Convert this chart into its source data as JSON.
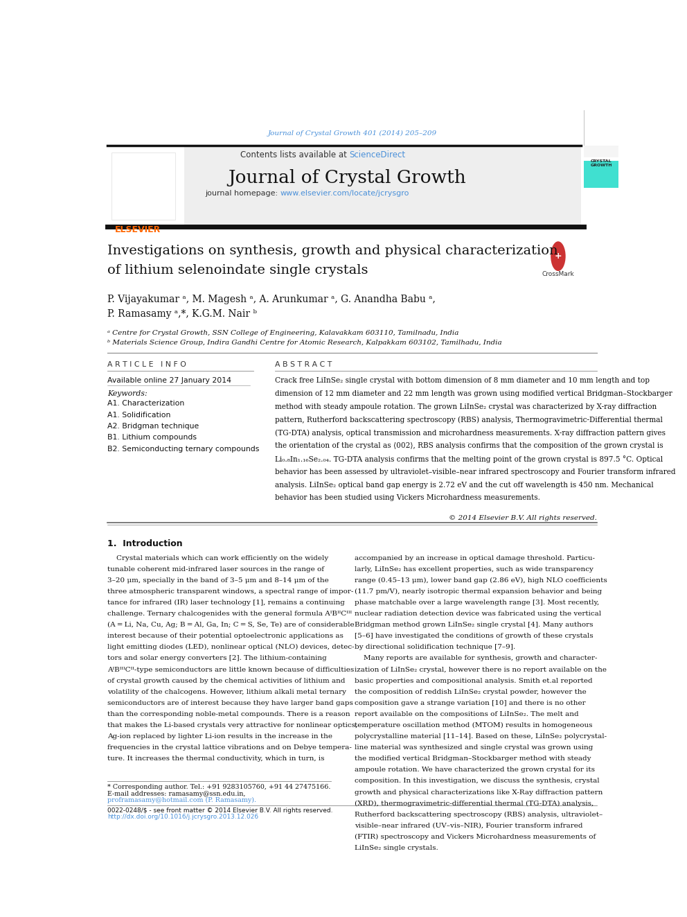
{
  "page_width": 9.92,
  "page_height": 13.23,
  "bg_color": "#ffffff",
  "journal_ref": "Journal of Crystal Growth 401 (2014) 205–209",
  "journal_ref_color": "#4a90d9",
  "journal_name": "Journal of Crystal Growth",
  "contents_text": "Contents lists available at ",
  "sciencedirect_text": "ScienceDirect",
  "sciencedirect_color": "#4a90d9",
  "journal_homepage_text": "journal homepage: ",
  "journal_url": "www.elsevier.com/locate/jcrysgro",
  "journal_url_color": "#4a90d9",
  "sidebar_teal": "#40E0D0",
  "article_title_line1": "Investigations on synthesis, growth and physical characterization",
  "article_title_line2": "of lithium selenoindate single crystals",
  "authors_line1": "P. Vijayakumar ᵃ, M. Magesh ᵃ, A. Arunkumar ᵃ, G. Anandha Babu ᵃ,",
  "authors_line2": "P. Ramasamy ᵃ,*, K.G.M. Nair ᵇ",
  "affil_a": "ᵃ Centre for Crystal Growth, SSN College of Engineering, Kalavakkam 603110, Tamilnadu, India",
  "affil_b": "ᵇ Materials Science Group, Indira Gandhi Centre for Atomic Research, Kalpakkam 603102, Tamilhadu, India",
  "article_info_title": "A R T I C L E   I N F O",
  "abstract_title": "A B S T R A C T",
  "available_online": "Available online 27 January 2014",
  "keywords_label": "Keywords:",
  "keywords": [
    "A1. Characterization",
    "A1. Solidification",
    "A2. Bridgman technique",
    "B1. Lithium compounds",
    "B2. Semiconducting ternary compounds"
  ],
  "abstract_text": "Crack free LiInSe₂ single crystal with bottom dimension of 8 mm diameter and 10 mm length and top\ndimension of 12 mm diameter and 22 mm length was grown using modified vertical Bridgman–Stockbarger\nmethod with steady ampoule rotation. The grown LiInSe₂ crystal was characterized by X-ray diffraction\npattern, Rutherford backscattering spectroscopy (RBS) analysis, Thermogravimetric-Differential thermal\n(TG-DTA) analysis, optical transmission and microhardness measurements. X-ray diffraction pattern gives\nthe orientation of the crystal as ⟨002⟩, RBS analysis confirms that the composition of the grown crystal is\nLi₀.₈In₁.₁₆Se₂.₀₄. TG-DTA analysis confirms that the melting point of the grown crystal is 897.5 °C. Optical\nbehavior has been assessed by ultraviolet–visible–near infrared spectroscopy and Fourier transform infrared\nanalysis. LiInSe₂ optical band gap energy is 2.72 eV and the cut off wavelength is 450 nm. Mechanical\nbehavior has been studied using Vickers Microhardness measurements.",
  "copyright_text": "© 2014 Elsevier B.V. All rights reserved.",
  "section1_title": "1.  Introduction",
  "intro_col1": "    Crystal materials which can work efficiently on the widely\ntunable coherent mid-infrared laser sources in the range of\n3–20 μm, specially in the band of 3–5 μm and 8–14 μm of the\nthree atmospheric transparent windows, a spectral range of impor-\ntance for infrared (IR) laser technology [1], remains a continuing\nchallenge. Ternary chalcogenides with the general formula AᴵBᴵᴵCᴵᴵᴵ\n(A = Li, Na, Cu, Ag; B = Al, Ga, In; C = S, Se, Te) are of considerable\ninterest because of their potential optoelectronic applications as\nlight emitting diodes (LED), nonlinear optical (NLO) devices, detec-\ntors and solar energy converters [2]. The lithium-containing\nAᴵBᴵᴵᴵCᴵᴵ-type semiconductors are little known because of difficulties\nof crystal growth caused by the chemical activities of lithium and\nvolatility of the chalcogens. However, lithium alkali metal ternary\nsemiconductors are of interest because they have larger band gaps\nthan the corresponding noble-metal compounds. There is a reason\nthat makes the Li-based crystals very attractive for nonlinear optics,\nAg-ion replaced by lighter Li-ion results in the increase in the\nfrequencies in the crystal lattice vibrations and on Debye tempera-\nture. It increases the thermal conductivity, which in turn, is",
  "intro_col2": "accompanied by an increase in optical damage threshold. Particu-\nlarly, LiInSe₂ has excellent properties, such as wide transparency\nrange (0.45–13 μm), lower band gap (2.86 eV), high NLO coefficients\n(11.7 pm/V), nearly isotropic thermal expansion behavior and being\nphase matchable over a large wavelength range [3]. Most recently,\nnuclear radiation detection device was fabricated using the vertical\nBridgman method grown LiInSe₂ single crystal [4]. Many authors\n[5–6] have investigated the conditions of growth of these crystals\nby directional solidification technique [7–9].\n    Many reports are available for synthesis, growth and character-\nization of LiInSe₂ crystal, however there is no report available on the\nbasic properties and compositional analysis. Smith et.al reported\nthe composition of reddish LiInSe₂ crystal powder, however the\ncomposition gave a strange variation [10] and there is no other\nreport available on the compositions of LiInSe₂. The melt and\ntemperature oscillation method (MTOM) results in homogeneous\npolycrystalline material [11–14]. Based on these, LiInSe₂ polycrystal-\nline material was synthesized and single crystal was grown using\nthe modified vertical Bridgman–Stockbarger method with steady\nampoule rotation. We have characterized the grown crystal for its\ncomposition. In this investigation, we discuss the synthesis, crystal\ngrowth and physical characterizations like X-Ray diffraction pattern\n(XRD), thermogravimetric-differential thermal (TG-DTA) analysis,\nRutherford backscattering spectroscopy (RBS) analysis, ultraviolet–\nvisible–near infrared (UV–vis–NIR), Fourier transform infrared\n(FTIR) spectroscopy and Vickers Microhardness measurements of\nLiInSe₂ single crystals.",
  "footnote_star": "* Corresponding author. Tel.: +91 9283105760, +91 44 27475166.",
  "footnote_email1": "E-mail addresses: ramasamy@ssn.edu.in,",
  "footnote_email2": "proframasamy@hotmail.com (P. Ramasamy).",
  "footnote_issn": "0022-0248/$ - see front matter © 2014 Elsevier B.V. All rights reserved.",
  "footnote_doi": "http://dx.doi.org/10.1016/j.jcrysgro.2013.12.026"
}
